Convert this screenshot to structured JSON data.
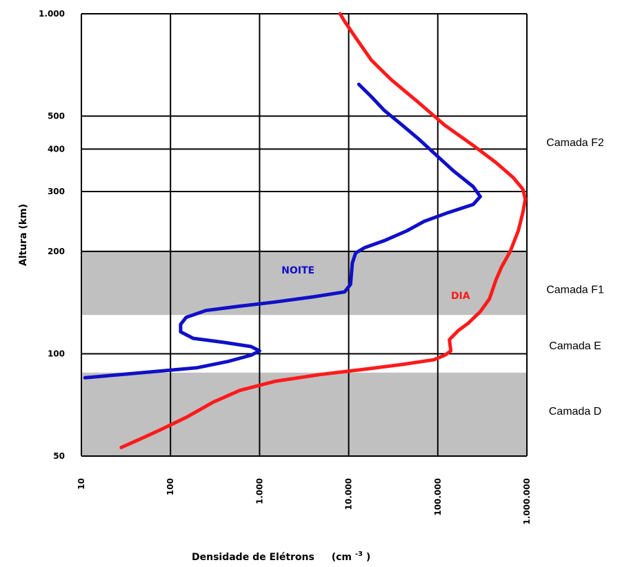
{
  "chart_data": {
    "type": "line",
    "xlabel": "Densidade de Elétrons",
    "xunit_base": "(cm",
    "xunit_exp": "-3",
    "xunit_close": ")",
    "ylabel": "Altura (km)",
    "x_scale": "log",
    "y_scale": "log",
    "xlim": [
      10,
      1000000
    ],
    "ylim": [
      50,
      1000
    ],
    "x_ticks": [
      {
        "value": 10,
        "label": "10"
      },
      {
        "value": 100,
        "label": "100"
      },
      {
        "value": 1000,
        "label": "1.000"
      },
      {
        "value": 10000,
        "label": "10.000"
      },
      {
        "value": 100000,
        "label": "100.000"
      },
      {
        "value": 1000000,
        "label": "1.000.000"
      }
    ],
    "y_ticks": [
      {
        "value": 50,
        "label": "50"
      },
      {
        "value": 100,
        "label": "100"
      },
      {
        "value": 200,
        "label": "200"
      },
      {
        "value": 300,
        "label": "300"
      },
      {
        "value": 400,
        "label": "400"
      },
      {
        "value": 500,
        "label": "500"
      },
      {
        "value": 1000,
        "label": "1.000"
      }
    ],
    "grid": true,
    "bands": [
      {
        "from": 50,
        "to": 88,
        "color": "#c0c0c0"
      },
      {
        "from": 130,
        "to": 200,
        "color": "#c0c0c0"
      }
    ],
    "layers": [
      {
        "label": "Camada F2",
        "y": 420
      },
      {
        "label": "Camada F1",
        "y": 155
      },
      {
        "label": "Camada E",
        "y": 106
      },
      {
        "label": "Camada D",
        "y": 68
      }
    ],
    "series": [
      {
        "name": "DIA",
        "color": "#ff1a1a",
        "label_at": [
          180000,
          145
        ],
        "points": [
          [
            28,
            53
          ],
          [
            45,
            56
          ],
          [
            80,
            60
          ],
          [
            150,
            65
          ],
          [
            300,
            72
          ],
          [
            600,
            78
          ],
          [
            1500,
            83
          ],
          [
            5000,
            87
          ],
          [
            15000,
            90
          ],
          [
            40000,
            93
          ],
          [
            90000,
            96
          ],
          [
            120000,
            99
          ],
          [
            140000,
            102
          ],
          [
            135000,
            110
          ],
          [
            170000,
            117
          ],
          [
            220000,
            123
          ],
          [
            300000,
            133
          ],
          [
            380000,
            145
          ],
          [
            450000,
            165
          ],
          [
            520000,
            180
          ],
          [
            650000,
            200
          ],
          [
            800000,
            230
          ],
          [
            900000,
            260
          ],
          [
            960000,
            285
          ],
          [
            900000,
            305
          ],
          [
            700000,
            330
          ],
          [
            450000,
            365
          ],
          [
            250000,
            410
          ],
          [
            120000,
            470
          ],
          [
            60000,
            550
          ],
          [
            30000,
            640
          ],
          [
            18000,
            730
          ],
          [
            12000,
            850
          ],
          [
            9000,
            950
          ],
          [
            8000,
            1000
          ]
        ]
      },
      {
        "name": "NOITE",
        "color": "#1010c8",
        "label_at": [
          2700,
          172
        ],
        "points": [
          [
            11,
            85
          ],
          [
            30,
            87
          ],
          [
            80,
            89
          ],
          [
            200,
            91
          ],
          [
            450,
            95
          ],
          [
            800,
            99
          ],
          [
            1000,
            102
          ],
          [
            800,
            105
          ],
          [
            400,
            108
          ],
          [
            180,
            111
          ],
          [
            130,
            116
          ],
          [
            130,
            122
          ],
          [
            150,
            128
          ],
          [
            250,
            134
          ],
          [
            600,
            138
          ],
          [
            1500,
            142
          ],
          [
            4000,
            147
          ],
          [
            9000,
            152
          ],
          [
            10500,
            160
          ],
          [
            11000,
            185
          ],
          [
            12000,
            198
          ],
          [
            15000,
            205
          ],
          [
            25000,
            215
          ],
          [
            45000,
            230
          ],
          [
            70000,
            245
          ],
          [
            130000,
            260
          ],
          [
            250000,
            275
          ],
          [
            300000,
            290
          ],
          [
            250000,
            310
          ],
          [
            150000,
            345
          ],
          [
            90000,
            390
          ],
          [
            60000,
            430
          ],
          [
            40000,
            470
          ],
          [
            25000,
            520
          ],
          [
            18000,
            570
          ],
          [
            13000,
            620
          ]
        ]
      }
    ]
  }
}
